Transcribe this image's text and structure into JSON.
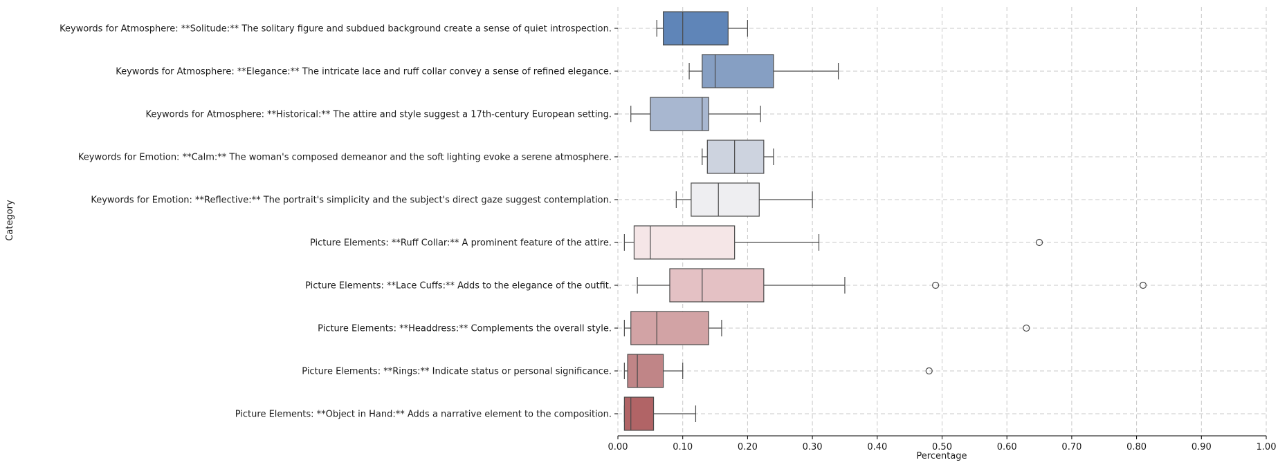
{
  "chart_data": {
    "type": "boxplot",
    "orientation": "horizontal",
    "xlabel": "Percentage",
    "ylabel": "Category",
    "xlim": [
      0,
      1
    ],
    "xticks": [
      0.0,
      0.1,
      0.2,
      0.3,
      0.4,
      0.5,
      0.6,
      0.7,
      0.8,
      0.9,
      1.0
    ],
    "xtick_labels": [
      "0.00",
      "0.10",
      "0.20",
      "0.30",
      "0.40",
      "0.50",
      "0.60",
      "0.70",
      "0.80",
      "0.90",
      "1.00"
    ],
    "grid": true,
    "categories": [
      {
        "label": "Keywords for Atmosphere: **Solitude:** The solitary figure and subdued background create a sense of quiet introspection.",
        "whislo": 0.06,
        "q1": 0.07,
        "med": 0.1,
        "q3": 0.17,
        "whishi": 0.2,
        "fliers": [],
        "color": "#5f85b8"
      },
      {
        "label": "Keywords for Atmosphere: **Elegance:** The intricate lace and ruff collar convey a sense of refined elegance.",
        "whislo": 0.11,
        "q1": 0.13,
        "med": 0.15,
        "q3": 0.24,
        "whishi": 0.34,
        "fliers": [],
        "color": "#869fc3"
      },
      {
        "label": "Keywords for Atmosphere: **Historical:** The attire and style suggest a 17th-century European setting.",
        "whislo": 0.02,
        "q1": 0.05,
        "med": 0.13,
        "q3": 0.14,
        "whishi": 0.22,
        "fliers": [],
        "color": "#a8b7d0"
      },
      {
        "label": "Keywords for Emotion: **Calm:** The woman's composed demeanor and the soft lighting evoke a serene atmosphere.",
        "whislo": 0.13,
        "q1": 0.138,
        "med": 0.18,
        "q3": 0.225,
        "whishi": 0.24,
        "fliers": [],
        "color": "#cdd3df"
      },
      {
        "label": "Keywords for Emotion: **Reflective:** The portrait's simplicity and the subject's direct gaze suggest contemplation.",
        "whislo": 0.09,
        "q1": 0.113,
        "med": 0.155,
        "q3": 0.218,
        "whishi": 0.3,
        "fliers": [],
        "color": "#eeeef1"
      },
      {
        "label": "Picture Elements: **Ruff Collar:** A prominent feature of the attire.",
        "whislo": 0.01,
        "q1": 0.025,
        "med": 0.05,
        "q3": 0.18,
        "whishi": 0.31,
        "fliers": [
          0.65
        ],
        "color": "#f5e6e7"
      },
      {
        "label": "Picture Elements: **Lace Cuffs:** Adds to the elegance of the outfit.",
        "whislo": 0.03,
        "q1": 0.08,
        "med": 0.13,
        "q3": 0.225,
        "whishi": 0.35,
        "fliers": [
          0.49,
          0.81
        ],
        "color": "#e4c1c4"
      },
      {
        "label": "Picture Elements: **Headdress:** Complements the overall style.",
        "whislo": 0.01,
        "q1": 0.02,
        "med": 0.06,
        "q3": 0.14,
        "whishi": 0.16,
        "fliers": [
          0.63
        ],
        "color": "#d2a3a5"
      },
      {
        "label": "Picture Elements: **Rings:** Indicate status or personal significance.",
        "whislo": 0.01,
        "q1": 0.015,
        "med": 0.03,
        "q3": 0.07,
        "whishi": 0.1,
        "fliers": [
          0.48
        ],
        "color": "#c08587"
      },
      {
        "label": "Picture Elements: **Object in Hand:** Adds a narrative element to the composition.",
        "whislo": 0.01,
        "q1": 0.01,
        "med": 0.02,
        "q3": 0.055,
        "whishi": 0.12,
        "fliers": [],
        "color": "#b16466"
      }
    ]
  }
}
